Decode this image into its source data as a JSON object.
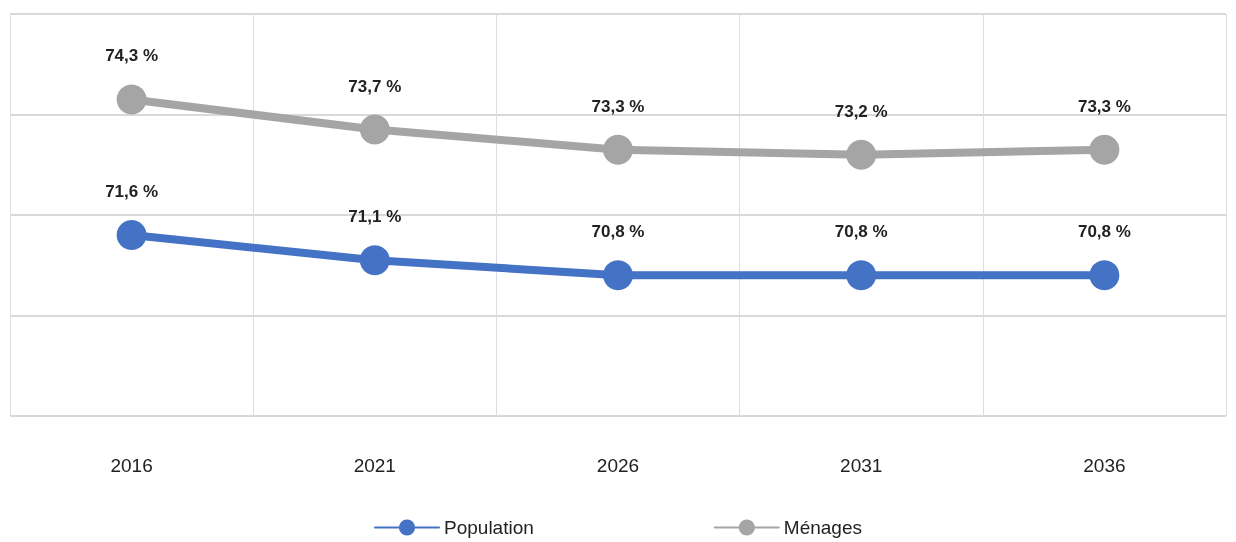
{
  "chart_data": {
    "type": "line",
    "categories": [
      "2016",
      "2021",
      "2026",
      "2031",
      "2036"
    ],
    "series": [
      {
        "name": "Population",
        "color": "#4472c4",
        "values": [
          71.6,
          71.1,
          70.8,
          70.8,
          70.8
        ],
        "value_labels": [
          "71,6 %",
          "71,1 %",
          "70,8 %",
          "70,8 %",
          "70,8 %"
        ]
      },
      {
        "name": "Ménages",
        "color": "#a5a5a5",
        "values": [
          74.3,
          73.7,
          73.3,
          73.2,
          73.3
        ],
        "value_labels": [
          "74,3 %",
          "73,7 %",
          "73,3 %",
          "73,2 %",
          "73,3 %"
        ]
      }
    ],
    "ylim": [
      68,
      76
    ],
    "yticks": [
      {
        "value": 68,
        "label": null
      },
      {
        "value": 70,
        "label": null
      },
      {
        "value": 72,
        "label": null
      },
      {
        "value": 74,
        "label": null
      },
      {
        "value": 76,
        "label": null
      }
    ],
    "tick_labels": "x",
    "grid": true,
    "legend": "bottom",
    "marker": "circle",
    "line_style": "solid"
  }
}
